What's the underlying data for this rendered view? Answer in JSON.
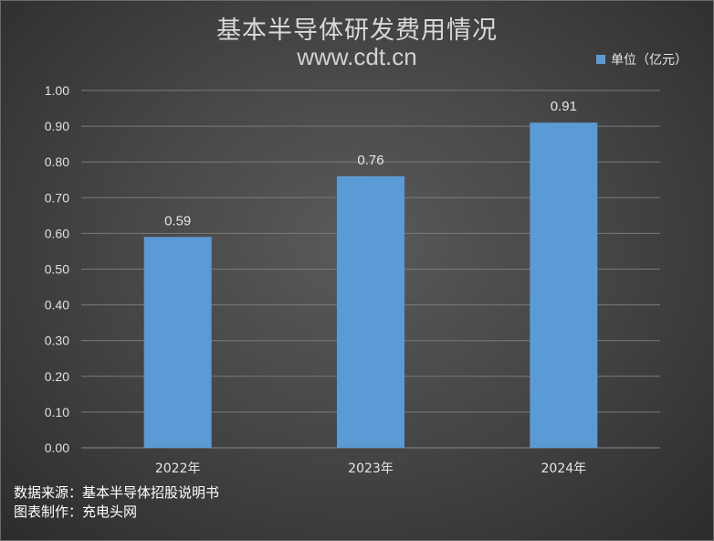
{
  "chart_data": {
    "type": "bar",
    "title": "基本半导体研发费用情况",
    "subtitle": "www.cdt.cn",
    "categories": [
      "2022年",
      "2023年",
      "2024年"
    ],
    "series": [
      {
        "name": "单位（亿元）",
        "values": [
          0.59,
          0.76,
          0.91
        ],
        "color": "#5b9bd5"
      }
    ],
    "ylim": [
      0,
      1.0
    ],
    "yticks": [
      "0.00",
      "0.10",
      "0.20",
      "0.30",
      "0.40",
      "0.50",
      "0.60",
      "0.70",
      "0.80",
      "0.90",
      "1.00"
    ],
    "data_labels": [
      "0.59",
      "0.76",
      "0.91"
    ],
    "grid": true,
    "legend_position": "top-right"
  },
  "footer": {
    "source": "数据来源：基本半导体招股说明书",
    "maker": "图表制作：充电头网"
  },
  "colors": {
    "bar": "#5b9bd5",
    "gridline": "#7a7a7a",
    "text": "#e0e0e0"
  }
}
